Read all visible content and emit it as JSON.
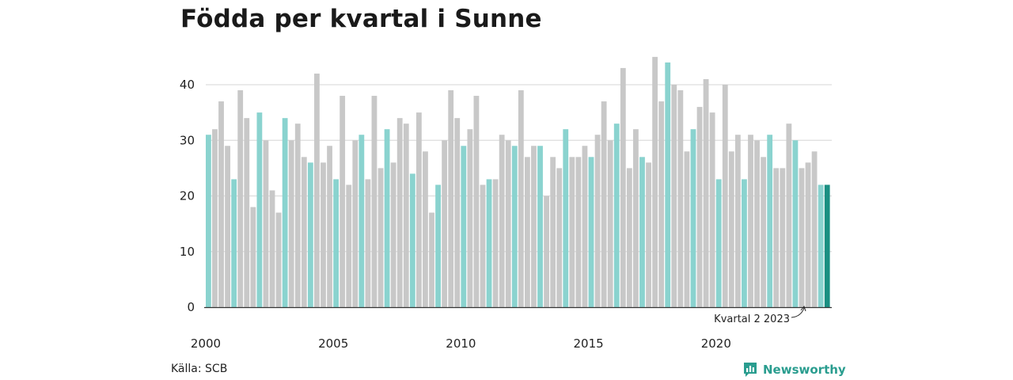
{
  "title": "Födda per kvartal i Sunne",
  "source": "Källa: SCB",
  "brand": "Newsworthy",
  "colors": {
    "q1": "#8ad3cf",
    "other": "#c8c8c8",
    "highlight": "#1a8f82",
    "grid": "#dddddd",
    "axis": "#333333"
  },
  "chart_data": {
    "type": "bar",
    "title": "Födda per kvartal i Sunne",
    "xlabel": "",
    "ylabel": "",
    "ylim": [
      0,
      45
    ],
    "yticks": [
      0,
      10,
      20,
      30,
      40
    ],
    "xticks": [
      "2000",
      "2005",
      "2010",
      "2015",
      "2020"
    ],
    "start_year": 2000,
    "start_quarter": 1,
    "grid": true,
    "values": [
      31,
      32,
      37,
      29,
      23,
      39,
      34,
      18,
      35,
      30,
      21,
      17,
      34,
      30,
      33,
      27,
      26,
      42,
      26,
      29,
      23,
      38,
      22,
      30,
      31,
      23,
      38,
      25,
      32,
      26,
      34,
      33,
      24,
      35,
      28,
      17,
      22,
      30,
      39,
      34,
      29,
      32,
      38,
      22,
      23,
      23,
      31,
      30,
      29,
      39,
      27,
      29,
      29,
      20,
      27,
      25,
      32,
      27,
      27,
      29,
      27,
      31,
      37,
      30,
      33,
      43,
      25,
      32,
      27,
      26,
      45,
      37,
      44,
      40,
      39,
      28,
      32,
      36,
      41,
      35,
      23,
      40,
      28,
      31,
      23,
      31,
      30,
      27,
      31,
      25,
      25,
      33,
      30,
      25,
      26,
      28,
      22,
      22
    ],
    "annotation": "Kvartal 2 2023"
  }
}
